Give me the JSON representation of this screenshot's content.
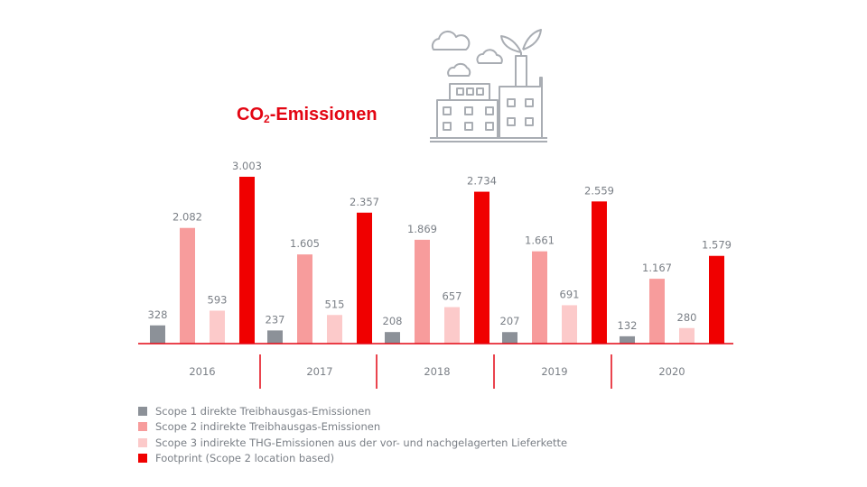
{
  "chart_data": {
    "type": "bar",
    "title": {
      "main": "CO",
      "sub": "2",
      "rest": "-Emissionen"
    },
    "categories": [
      "2016",
      "2017",
      "2018",
      "2019",
      "2020"
    ],
    "series": [
      {
        "name": "Scope 1 direkte Treibhausgas-Emissionen",
        "color": "#8c9198",
        "values": [
          328,
          237,
          208,
          207,
          132
        ],
        "labels": [
          "328",
          "237",
          "208",
          "207",
          "132"
        ]
      },
      {
        "name": "Scope 2 indirekte Treibhausgas-Emissionen",
        "color": "#f79c9c",
        "values": [
          2082,
          1605,
          1869,
          1661,
          1167
        ],
        "labels": [
          "2.082",
          "1.605",
          "1.869",
          "1.661",
          "1.167"
        ]
      },
      {
        "name": "Scope 3 indirekte THG-Emissionen aus der vor- und nachgelagerten Lieferkette",
        "color": "#fccaca",
        "values": [
          593,
          515,
          657,
          691,
          280
        ],
        "labels": [
          "593",
          "515",
          "657",
          "691",
          "280"
        ]
      },
      {
        "name": "Footprint (Scope 2 location based)",
        "color": "#f00000",
        "values": [
          3003,
          2357,
          2734,
          2559,
          1579
        ],
        "labels": [
          "3.003",
          "2.357",
          "2.734",
          "2.559",
          "1.579"
        ]
      }
    ],
    "ylim": [
      0,
      3003
    ],
    "legend_position": "bottom-left",
    "grid": false
  },
  "colors": {
    "title": "#e30613",
    "axis": "#e30613",
    "text": "#7a7f86",
    "icon": "#a9adb3"
  },
  "icons": {
    "illustration": "factory-icon"
  }
}
